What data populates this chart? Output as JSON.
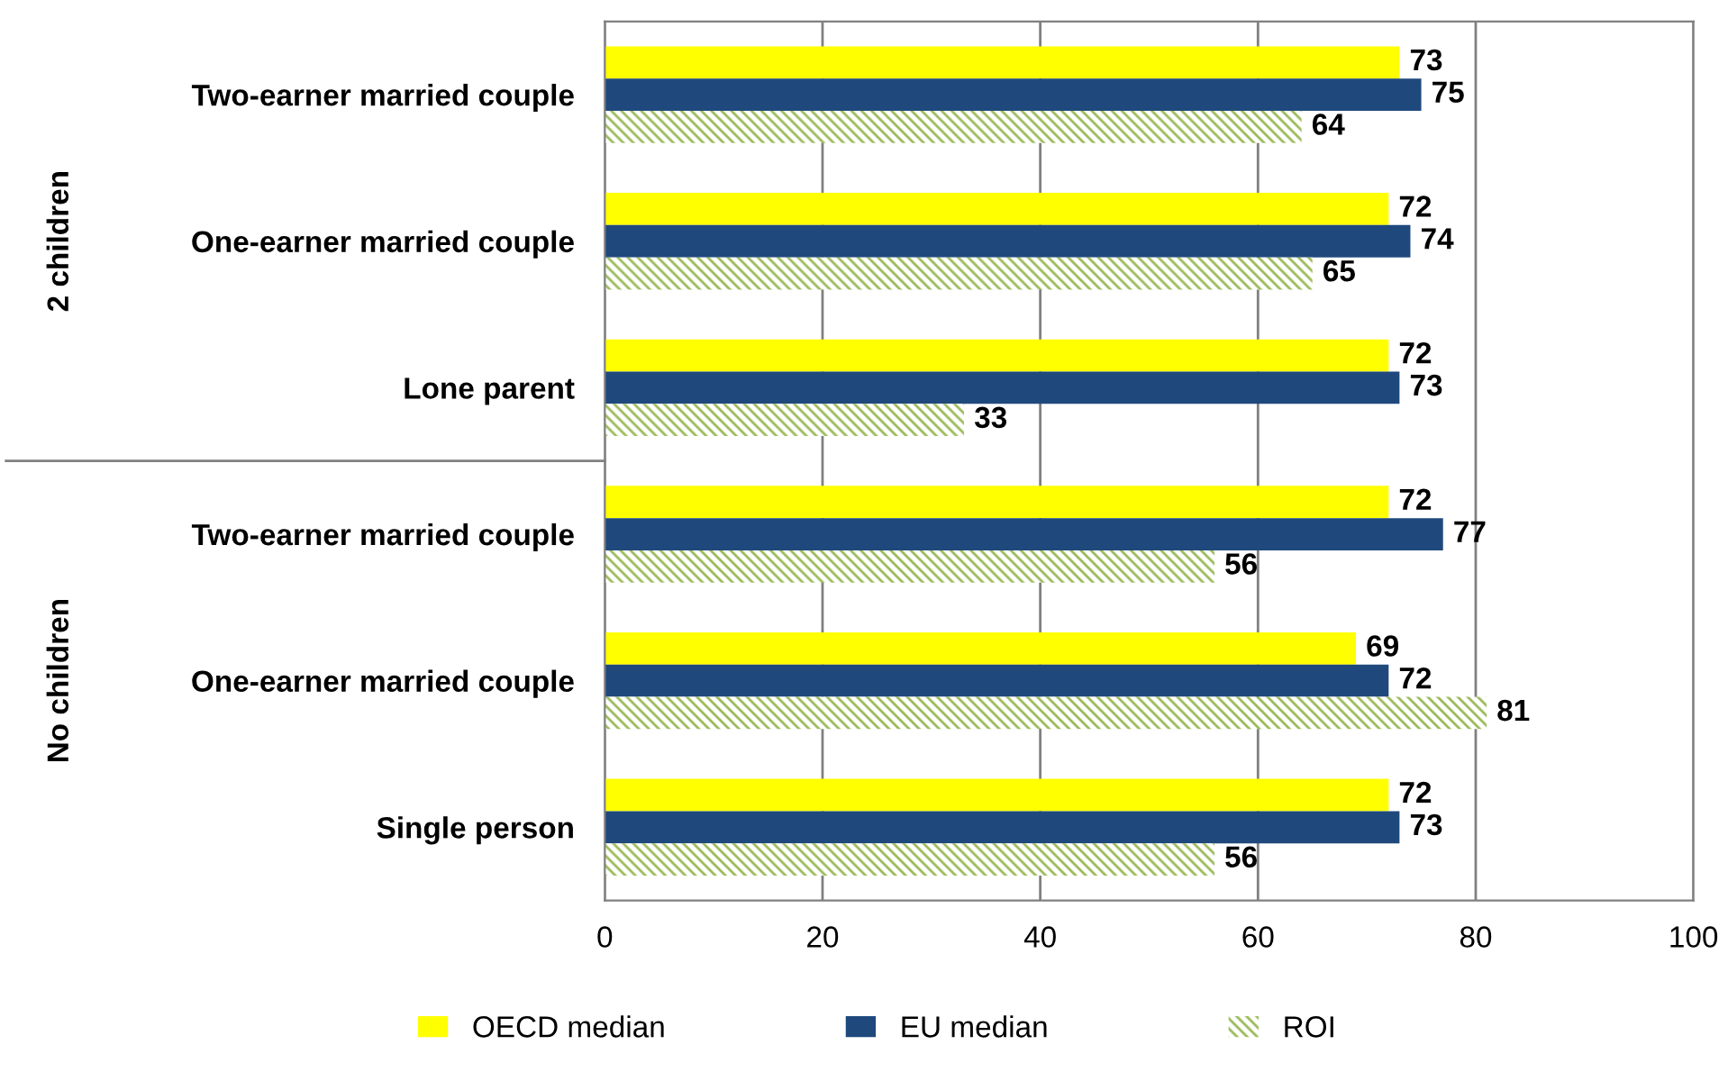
{
  "chart_data": {
    "type": "bar",
    "orientation": "horizontal",
    "categories": [
      "Two-earner married couple",
      "One-earner married couple",
      "Lone parent",
      "Two-earner married couple",
      "One-earner married couple",
      "Single person"
    ],
    "series": [
      {
        "name": "OECD median",
        "color": "#ffff00",
        "values": [
          73,
          72,
          72,
          72,
          69,
          72
        ]
      },
      {
        "name": "EU median",
        "color": "#1f497d",
        "values": [
          75,
          74,
          73,
          77,
          72,
          73
        ]
      },
      {
        "name": "ROI",
        "color": "#9bbb59",
        "values": [
          64,
          65,
          33,
          56,
          81,
          56
        ]
      }
    ],
    "annotations": [
      "2 children",
      "No children"
    ],
    "xlim": [
      0,
      100
    ],
    "xticks": [
      0,
      20,
      40,
      60,
      80,
      100
    ],
    "grid": "x",
    "legend": "bottom",
    "data_labels": true
  }
}
